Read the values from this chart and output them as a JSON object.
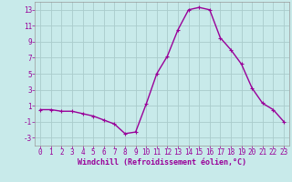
{
  "x": [
    0,
    1,
    2,
    3,
    4,
    5,
    6,
    7,
    8,
    9,
    10,
    11,
    12,
    13,
    14,
    15,
    16,
    17,
    18,
    19,
    20,
    21,
    22,
    23
  ],
  "y": [
    0.5,
    0.5,
    0.3,
    0.3,
    0.0,
    -0.3,
    -0.8,
    -1.3,
    -2.5,
    -2.3,
    1.2,
    5.0,
    7.2,
    10.5,
    13.0,
    13.3,
    13.0,
    9.5,
    8.0,
    6.2,
    3.2,
    1.3,
    0.5,
    -1.0
  ],
  "line_color": "#990099",
  "marker": "+",
  "bg_color": "#c8eaea",
  "grid_color": "#aacccc",
  "xlabel": "Windchill (Refroidissement éolien,°C)",
  "ylabel": "",
  "xlim": [
    -0.5,
    23.5
  ],
  "ylim": [
    -4,
    14
  ],
  "xticks": [
    0,
    1,
    2,
    3,
    4,
    5,
    6,
    7,
    8,
    9,
    10,
    11,
    12,
    13,
    14,
    15,
    16,
    17,
    18,
    19,
    20,
    21,
    22,
    23
  ],
  "yticks": [
    -3,
    -1,
    1,
    3,
    5,
    7,
    9,
    11,
    13
  ],
  "tick_color": "#990099",
  "label_color": "#990099",
  "spine_color": "#999999",
  "tick_fontsize": 5.5,
  "xlabel_fontsize": 6,
  "line_width": 1.0,
  "marker_size": 3.5
}
